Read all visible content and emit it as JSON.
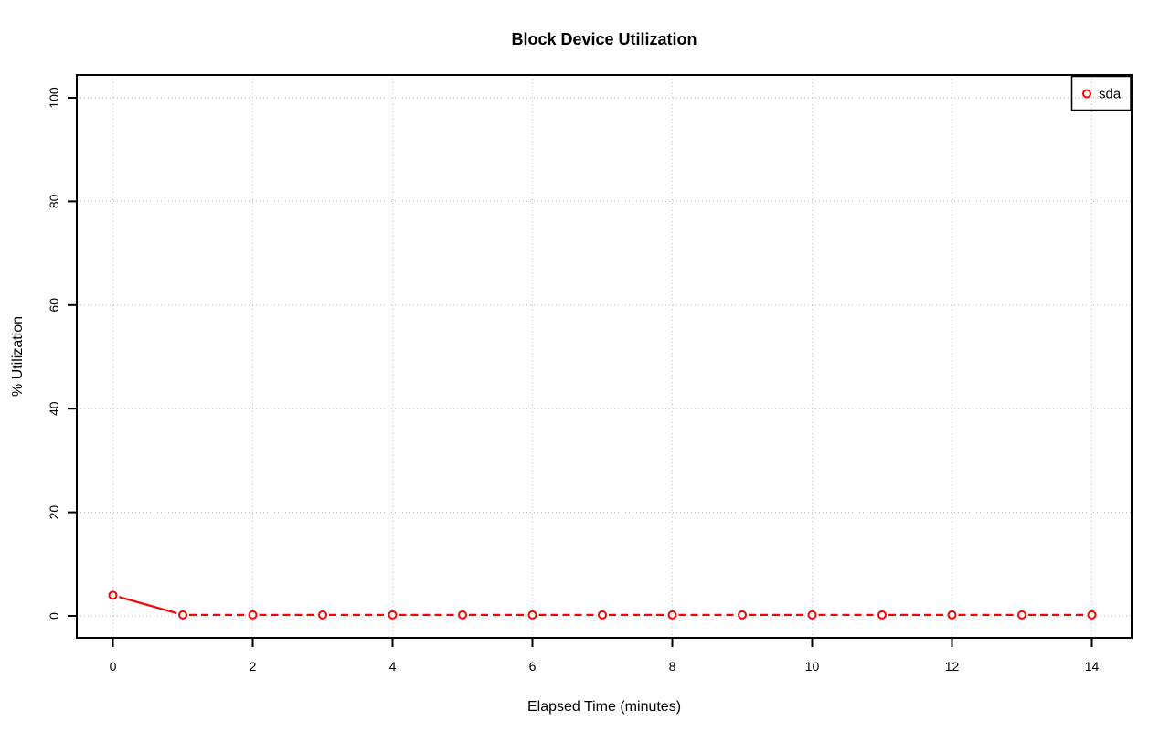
{
  "chart_data": {
    "type": "line",
    "title": "Block Device Utilization",
    "xlabel": "Elapsed Time (minutes)",
    "ylabel": "% Utilization",
    "x": [
      0,
      1,
      2,
      3,
      4,
      5,
      6,
      7,
      8,
      9,
      10,
      11,
      12,
      13,
      14
    ],
    "series": [
      {
        "name": "sda",
        "color": "#ff0000",
        "marker": "open-circle",
        "values": [
          4.0,
          0.2,
          0.2,
          0.2,
          0.2,
          0.2,
          0.2,
          0.2,
          0.2,
          0.2,
          0.2,
          0.2,
          0.2,
          0.2,
          0.2
        ]
      }
    ],
    "xticks": [
      0,
      2,
      4,
      6,
      8,
      10,
      12,
      14
    ],
    "yticks": [
      0,
      20,
      40,
      60,
      80,
      100
    ],
    "xlim": [
      -0.56,
      14.56
    ],
    "ylim": [
      -4,
      104
    ],
    "grid": "dotted",
    "grid_color": "#c6c6c6",
    "axis_color": "#000000",
    "background": "#ffffff",
    "legend_position": "topright",
    "line_style": {
      "first_segment": "solid",
      "rest": "dashed",
      "point_gap": true
    }
  }
}
